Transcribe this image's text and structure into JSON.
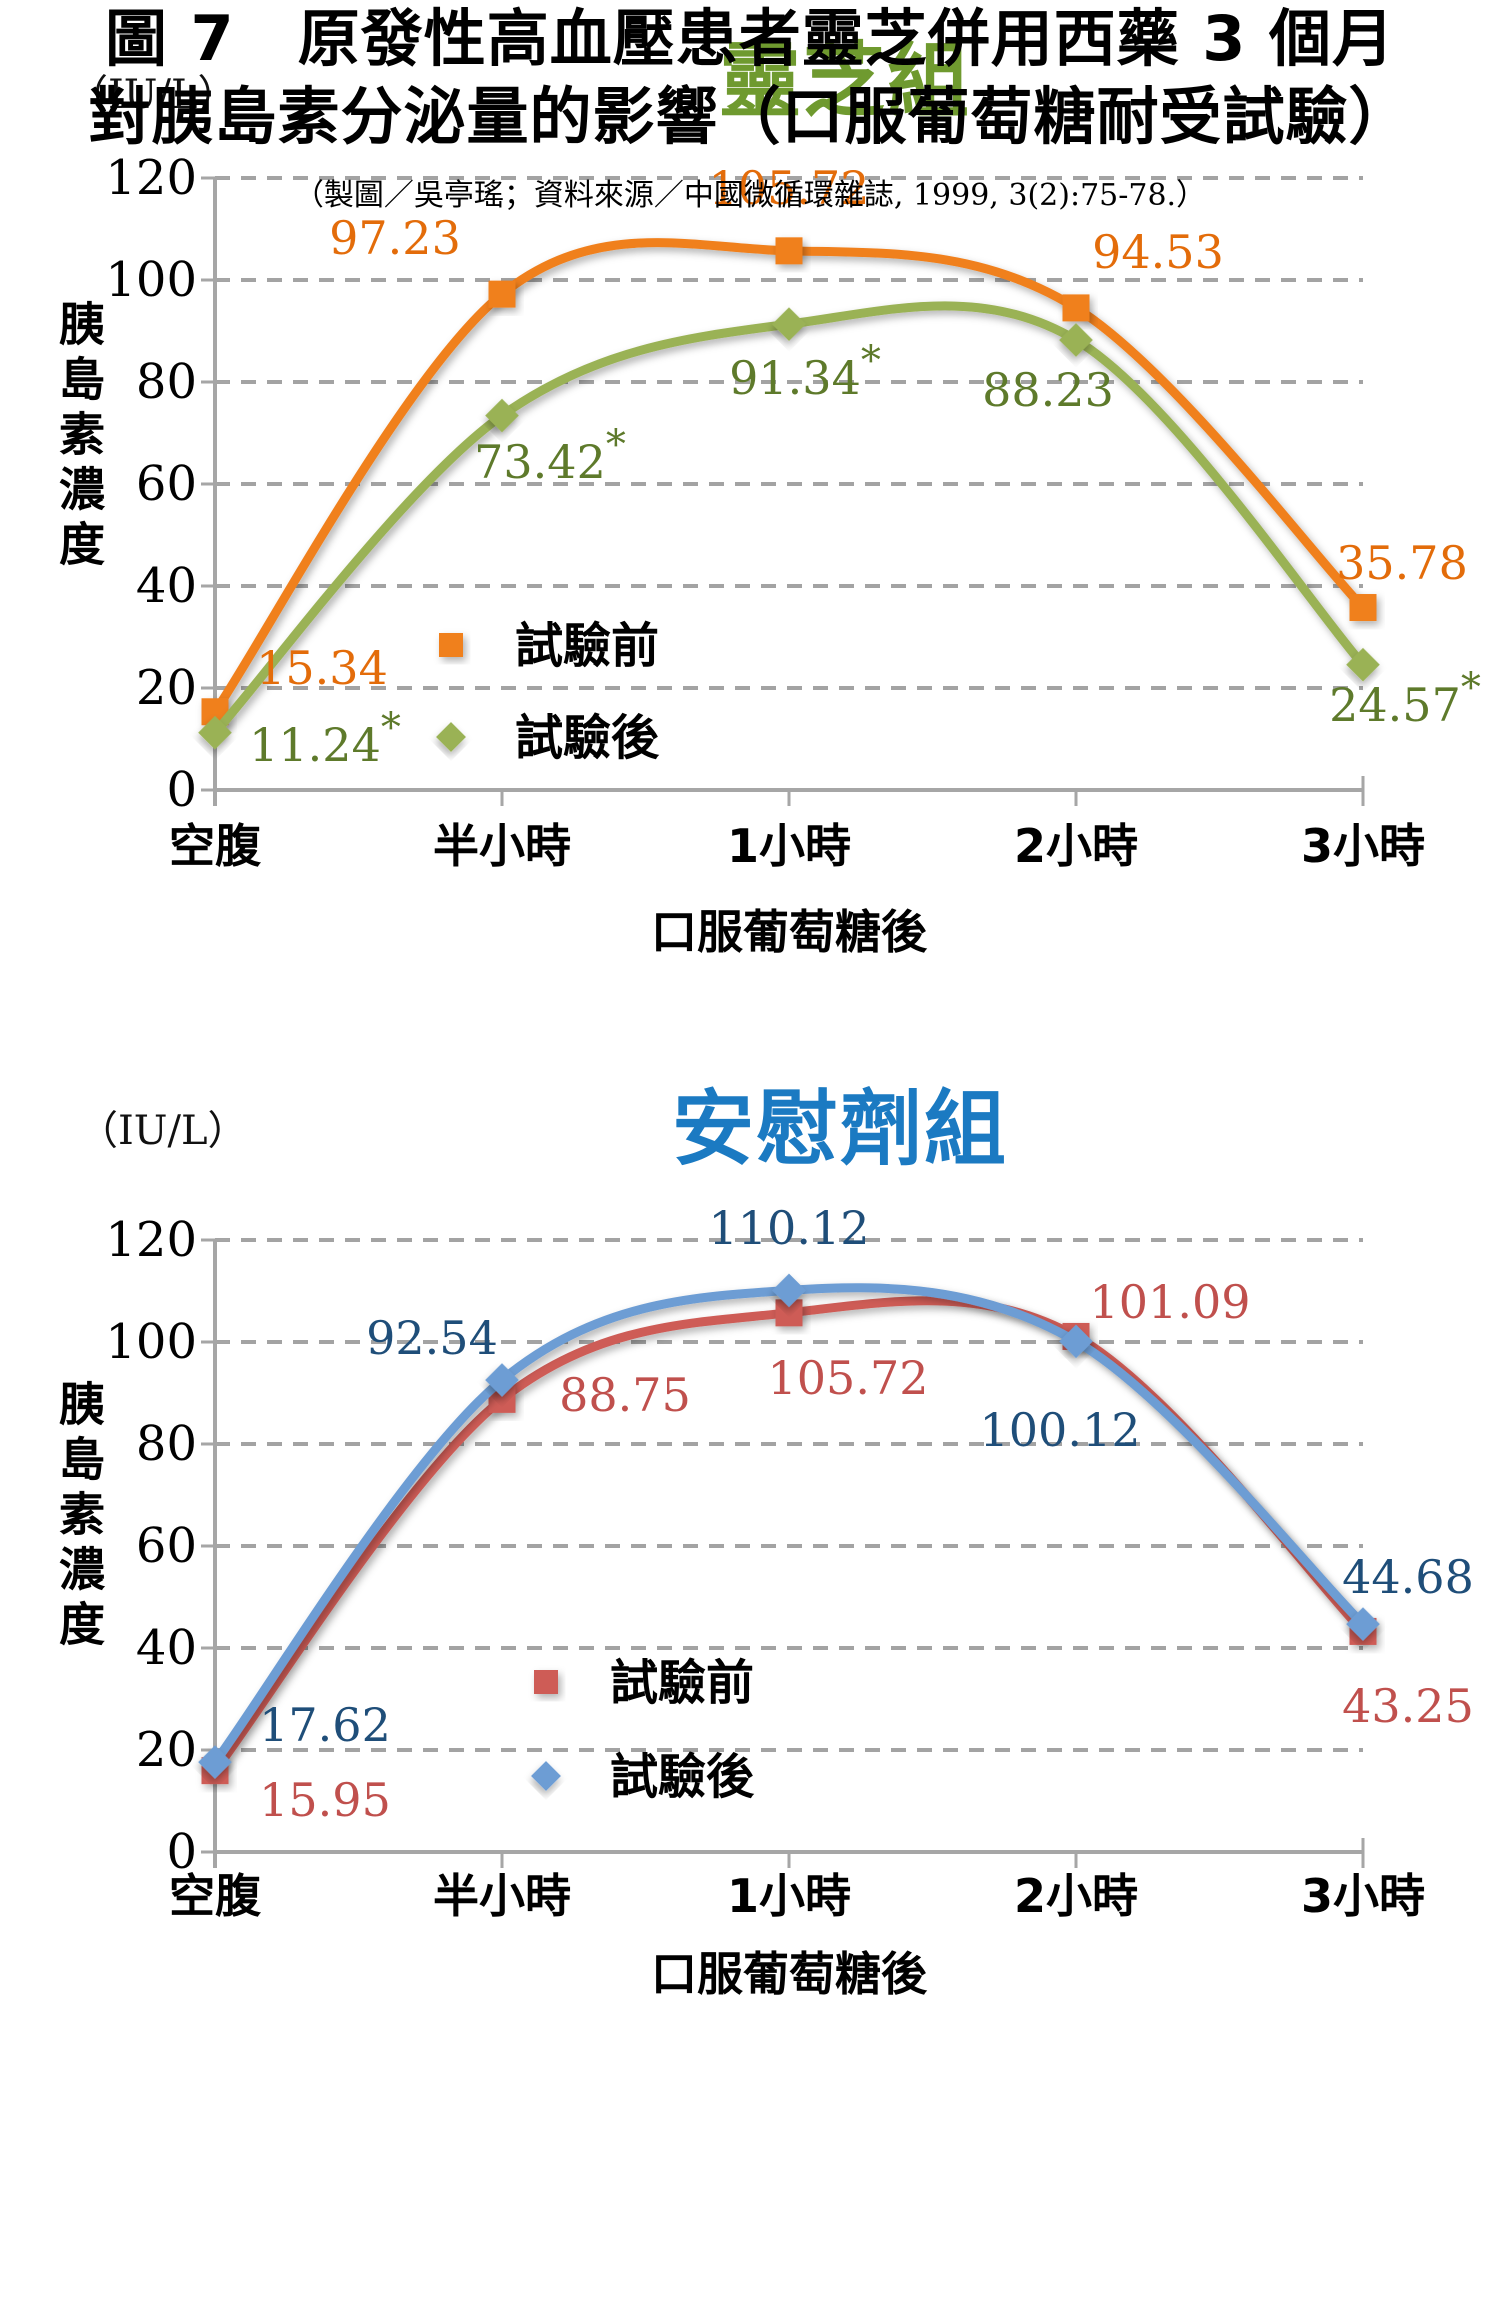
{
  "chart_data": [
    {
      "type": "line",
      "title": "靈芝組",
      "title_color": "#6F9A2F",
      "unit_label": "（IU/L）",
      "y_axis_title": "胰島素濃度",
      "x_axis_title": "口服葡萄糖後",
      "categories": [
        "空腹",
        "半小時",
        "1小時",
        "2小時",
        "3小時"
      ],
      "y_ticks": [
        0,
        20,
        40,
        60,
        80,
        100,
        120
      ],
      "ylim": [
        0,
        120
      ],
      "grid": "horizontal-dashed",
      "legend_position": "inside-lower-left",
      "series": [
        {
          "name": "試驗前",
          "marker": "square",
          "color": "#F0801F",
          "label_color": "#E36C0A",
          "values": [
            15.34,
            97.23,
            105.72,
            94.53,
            35.78
          ],
          "point_labels": [
            "15.34",
            "97.23",
            "105.72",
            "94.53",
            "35.78"
          ]
        },
        {
          "name": "試驗後",
          "marker": "diamond",
          "color": "#9AB254",
          "label_color": "#5E7A2B",
          "values": [
            11.24,
            73.42,
            91.34,
            88.23,
            24.57
          ],
          "point_labels": [
            "11.24*",
            "73.42*",
            "91.34*",
            "88.23",
            "24.57*"
          ]
        }
      ]
    },
    {
      "type": "line",
      "title": "安慰劑組",
      "title_color": "#1B7AC2",
      "unit_label": "（IU/L）",
      "y_axis_title": "胰島素濃度",
      "x_axis_title": "口服葡萄糖後",
      "categories": [
        "空腹",
        "半小時",
        "1小時",
        "2小時",
        "3小時"
      ],
      "y_ticks": [
        0,
        20,
        40,
        60,
        80,
        100,
        120
      ],
      "ylim": [
        0,
        120
      ],
      "grid": "horizontal-dashed",
      "legend_position": "inside-lower-left",
      "series": [
        {
          "name": "試驗前",
          "marker": "square",
          "color": "#CE5B56",
          "label_color": "#C0504D",
          "values": [
            15.95,
            88.75,
            105.72,
            101.09,
            43.25
          ],
          "point_labels": [
            "15.95",
            "88.75",
            "105.72",
            "101.09",
            "43.25"
          ]
        },
        {
          "name": "試驗後",
          "marker": "diamond",
          "color": "#6D9DD4",
          "label_color": "#1F4E79",
          "values": [
            17.62,
            92.54,
            110.12,
            100.12,
            44.68
          ],
          "point_labels": [
            "17.62",
            "92.54",
            "110.12",
            "100.12",
            "44.68"
          ]
        }
      ]
    }
  ],
  "axis_style": {
    "grid_color": "#A3A3A3",
    "axis_color": "#A6A6A6",
    "tick_label_color": "#000000",
    "legend_text_color": "#000000"
  },
  "caption": {
    "line1": "圖 7　原發性高血壓患者靈芝併用西藥 3 個月",
    "line2": "對胰島素分泌量的影響（口服葡萄糖耐受試驗）",
    "source": "（製圖／吳亭瑤；資料來源／中國微循環雜誌, 1999, 3(2):75-78.）"
  }
}
